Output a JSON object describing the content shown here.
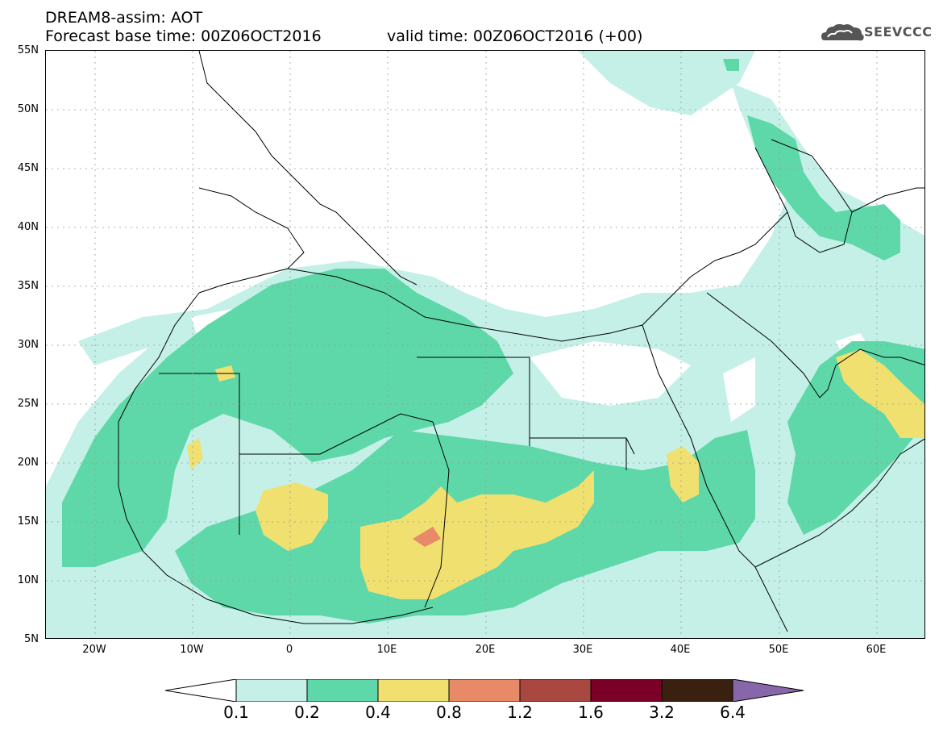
{
  "header": {
    "title": "DREAM8-assim: AOT",
    "base_time": "Forecast base time: 00Z06OCT2016",
    "valid_time": "valid time: 00Z06OCT2016 (+00)"
  },
  "logo": {
    "text": "SEEVCCC",
    "icon": "cloud-icon"
  },
  "map": {
    "variable": "AOT",
    "projection": "lat-lon",
    "lat_range": [
      5,
      55
    ],
    "lon_range": [
      -25,
      65
    ],
    "lat_labels": [
      "55N",
      "50N",
      "45N",
      "40N",
      "35N",
      "30N",
      "25N",
      "20N",
      "15N",
      "10N",
      "5N"
    ],
    "lon_labels": [
      "20W",
      "10W",
      "0",
      "10E",
      "20E",
      "30E",
      "40E",
      "50E",
      "60E"
    ],
    "grid": "dotted"
  },
  "colorbar": {
    "levels": [
      "0.1",
      "0.2",
      "0.4",
      "0.8",
      "1.2",
      "1.6",
      "3.2",
      "6.4"
    ],
    "colors": [
      "#ffffff",
      "#c4f0e8",
      "#5ed8a8",
      "#f0e070",
      "#e88a68",
      "#a84840",
      "#7a0028",
      "#3a2010",
      "#8866aa"
    ]
  }
}
